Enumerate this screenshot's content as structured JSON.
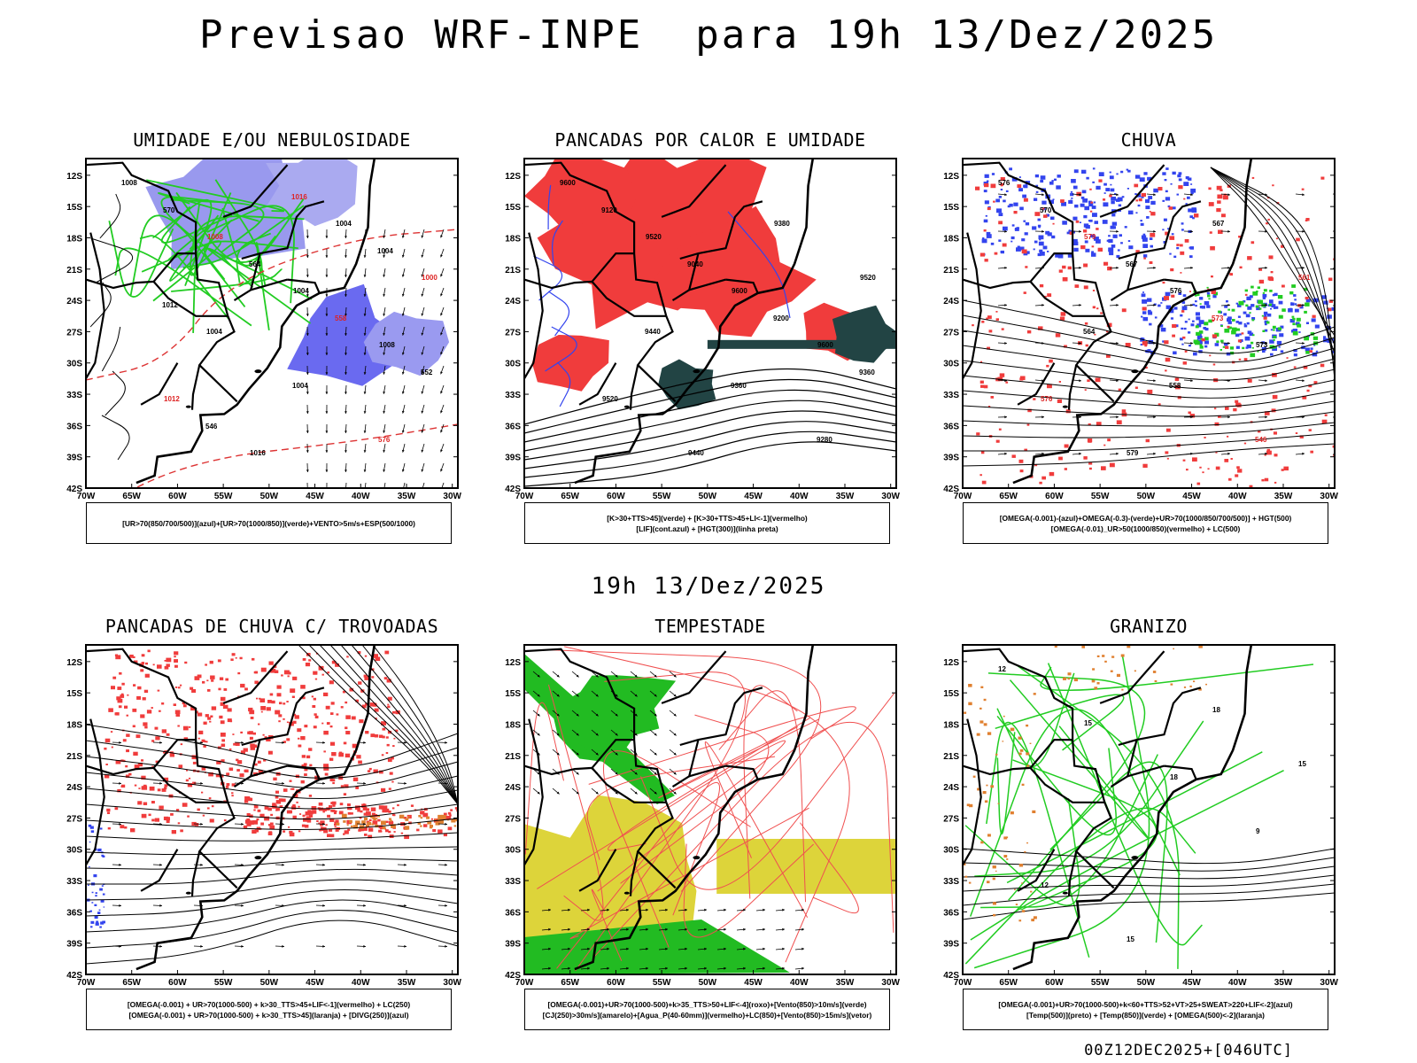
{
  "title": "Previsao WRF-INPE  para 19h 13/Dez/2025",
  "subtitle_time": "19h 13/Dez/2025",
  "footer": "00Z12DEC2025+[046UTC]",
  "axis": {
    "lat_labels": [
      "12S",
      "15S",
      "18S",
      "21S",
      "24S",
      "27S",
      "30S",
      "33S",
      "36S",
      "39S",
      "42S"
    ],
    "lon_labels": [
      "70W",
      "65W",
      "60W",
      "55W",
      "50W",
      "45W",
      "40W",
      "35W",
      "30W"
    ]
  },
  "panels": [
    {
      "title": "UMIDADE E/OU NEBULOSIDADE",
      "legend": [
        "[UR>70(850/700/500)](azul)+[UR>70(1000/850)](verde)+VENTO>5m/s+ESP(500/1000)"
      ],
      "contour_labels": [
        "1008",
        "1008",
        "1004",
        "1008",
        "1012",
        "1016",
        "1004",
        "1000",
        "1004",
        "1004",
        "576",
        "570",
        "564",
        "558",
        "552",
        "546",
        "1016",
        "1004",
        "1012"
      ]
    },
    {
      "title": "PANCADAS POR CALOR E UMIDADE",
      "legend": [
        "[K>30+TTS>45](verde) + [K>30+TTS>45+LI<-1](vermelho)",
        "[LIF](cont.azul) + [HGT(300)](linha preta)"
      ],
      "contour_labels": [
        "9600",
        "9520",
        "9600",
        "9600",
        "9520",
        "9440",
        "9380",
        "9520",
        "9440",
        "9360",
        "9280",
        "9120",
        "9040",
        "9200",
        "9360"
      ]
    },
    {
      "title": "CHUVA",
      "legend": [
        "[OMEGA(-0.001)-(azul)+OMEGA(-0.3)-(verde)+UR>70(1000/850/700/500)] + HGT(500)",
        "[OMEGA(-0.01)_UR>50(1000/850)(vermelho) + LC(500)"
      ],
      "contour_labels": [
        "576",
        "579",
        "576",
        "573",
        "576",
        "579",
        "567",
        "561",
        "564",
        "558",
        "546",
        "570",
        "567",
        "573"
      ]
    },
    {
      "title": "PANCADAS DE CHUVA C/ TROVOADAS",
      "legend": [
        "[OMEGA(-0.001) + UR>70(1000-500) + k>30_TTS>45+LIF<-1](vermelho) + LC(250)",
        "[OMEGA(-0.001) + UR>70(1000-500) + k>30_TTS>45](laranja) + [DIVG(250)](azul)"
      ],
      "contour_labels": []
    },
    {
      "title": "TEMPESTADE",
      "legend": [
        "[OMEGA(-0.001)+UR>70(1000-500)+k>35_TTS>50+LIF<-4](roxo)+[Vento(850)>10m/s](verde)",
        "[CJ(250)>30m/s](amarelo)+[Agua_P(40-60mm)](vermelho)+LC(850)+[Vento(850)>15m/s](vetor)"
      ],
      "contour_labels": []
    },
    {
      "title": "GRANIZO",
      "legend": [
        "[OMEGA(-0.001)+UR>70(1000-500)+k<60+TTS>52+VT>25+SWEAT>220+LIF<-2](azul)",
        "[Temp(500)](preto) + [Temp(850)](verde) + [OMEGA(500)<-2](laranja)"
      ],
      "contour_labels": [
        "12",
        "15",
        "18",
        "9",
        "12",
        "15",
        "18",
        "15"
      ]
    }
  ],
  "colors": {
    "red": "#f03c3c",
    "green": "#22cc22",
    "blue": "#3344ee",
    "lightblue": "#9999ee",
    "yellow": "#ddd43a",
    "darkteal": "#224444",
    "orange": "#e08030",
    "purple": "#9922cc"
  }
}
